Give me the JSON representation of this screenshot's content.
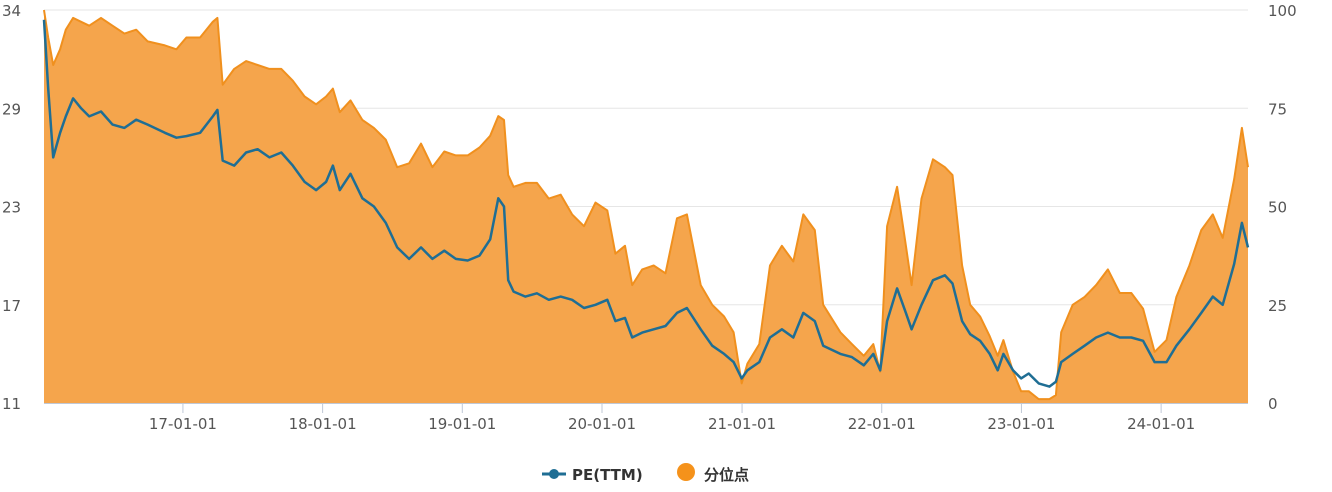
{
  "chart_data": {
    "type": "line",
    "title": "",
    "grid": "horizontal",
    "legend_position": "bottom-center",
    "colors": {
      "pe": "#1f6e94",
      "percentile_fill": "#f5a54c",
      "percentile_line": "#f0901e",
      "legend_percentile": "#f5921b",
      "axis": "#c0c8d6",
      "grid": "#e6e6e6"
    },
    "x_axis": {
      "type": "date",
      "range": [
        "2016-01-04",
        "2024-08-15"
      ],
      "ticks": [
        "2017-01-01",
        "2018-01-01",
        "2019-01-01",
        "2020-01-01",
        "2021-01-01",
        "2022-01-01",
        "2023-01-01",
        "2024-01-01"
      ],
      "tick_labels": [
        "17-01-01",
        "18-01-01",
        "19-01-01",
        "20-01-01",
        "21-01-01",
        "22-01-01",
        "23-01-01",
        "24-01-01"
      ]
    },
    "y_axis_left": {
      "ticks": [
        11,
        17,
        23,
        29,
        34
      ],
      "tick_labels": [
        "11",
        "17",
        "23",
        "29",
        "34"
      ]
    },
    "y_axis_right": {
      "range": [
        0,
        100
      ],
      "ticks": [
        0,
        25,
        50,
        75,
        100
      ],
      "tick_labels": [
        "0",
        "25",
        "50",
        "75",
        "100"
      ]
    },
    "series": [
      {
        "name": "PE(TTM)",
        "axis": "left",
        "style": "line",
        "points": [
          [
            "2016-01-04",
            33.5
          ],
          [
            "2016-01-15",
            30.0
          ],
          [
            "2016-01-28",
            26.0
          ],
          [
            "2016-02-15",
            27.5
          ],
          [
            "2016-03-01",
            28.5
          ],
          [
            "2016-03-20",
            29.5
          ],
          [
            "2016-04-10",
            29.0
          ],
          [
            "2016-05-01",
            28.5
          ],
          [
            "2016-06-01",
            28.8
          ],
          [
            "2016-07-01",
            28.0
          ],
          [
            "2016-08-01",
            27.8
          ],
          [
            "2016-09-01",
            28.3
          ],
          [
            "2016-10-01",
            28.0
          ],
          [
            "2016-11-15",
            27.5
          ],
          [
            "2016-12-15",
            27.2
          ],
          [
            "2017-01-10",
            27.3
          ],
          [
            "2017-02-15",
            27.5
          ],
          [
            "2017-03-20",
            28.5
          ],
          [
            "2017-04-01",
            28.9
          ],
          [
            "2017-04-15",
            25.8
          ],
          [
            "2017-05-15",
            25.5
          ],
          [
            "2017-06-15",
            26.3
          ],
          [
            "2017-07-15",
            26.5
          ],
          [
            "2017-08-15",
            26.0
          ],
          [
            "2017-09-15",
            26.3
          ],
          [
            "2017-10-15",
            25.5
          ],
          [
            "2017-11-15",
            24.5
          ],
          [
            "2017-12-15",
            24.0
          ],
          [
            "2018-01-10",
            24.5
          ],
          [
            "2018-01-28",
            25.5
          ],
          [
            "2018-02-15",
            24.0
          ],
          [
            "2018-03-15",
            25.0
          ],
          [
            "2018-04-15",
            23.5
          ],
          [
            "2018-05-15",
            23.0
          ],
          [
            "2018-06-15",
            22.0
          ],
          [
            "2018-07-15",
            20.5
          ],
          [
            "2018-08-15",
            19.8
          ],
          [
            "2018-09-15",
            20.5
          ],
          [
            "2018-10-15",
            19.8
          ],
          [
            "2018-11-15",
            20.3
          ],
          [
            "2018-12-15",
            19.8
          ],
          [
            "2019-01-15",
            19.7
          ],
          [
            "2019-02-15",
            20.0
          ],
          [
            "2019-03-15",
            21.0
          ],
          [
            "2019-04-05",
            23.5
          ],
          [
            "2019-04-20",
            23.0
          ],
          [
            "2019-05-01",
            18.5
          ],
          [
            "2019-05-15",
            17.8
          ],
          [
            "2019-06-15",
            17.5
          ],
          [
            "2019-07-15",
            17.7
          ],
          [
            "2019-08-15",
            17.3
          ],
          [
            "2019-09-15",
            17.5
          ],
          [
            "2019-10-15",
            17.3
          ],
          [
            "2019-11-15",
            16.8
          ],
          [
            "2019-12-15",
            17.0
          ],
          [
            "2020-01-15",
            17.3
          ],
          [
            "2020-02-05",
            16.0
          ],
          [
            "2020-03-01",
            16.2
          ],
          [
            "2020-03-20",
            15.0
          ],
          [
            "2020-04-15",
            15.3
          ],
          [
            "2020-05-15",
            15.5
          ],
          [
            "2020-06-15",
            15.7
          ],
          [
            "2020-07-15",
            16.5
          ],
          [
            "2020-08-10",
            16.8
          ],
          [
            "2020-09-15",
            15.5
          ],
          [
            "2020-10-15",
            14.5
          ],
          [
            "2020-11-15",
            14.0
          ],
          [
            "2020-12-10",
            13.5
          ],
          [
            "2020-12-31",
            12.5
          ],
          [
            "2021-01-15",
            13.0
          ],
          [
            "2021-02-15",
            13.5
          ],
          [
            "2021-03-15",
            15.0
          ],
          [
            "2021-04-15",
            15.5
          ],
          [
            "2021-05-15",
            15.0
          ],
          [
            "2021-06-10",
            16.5
          ],
          [
            "2021-07-10",
            16.0
          ],
          [
            "2021-08-01",
            14.5
          ],
          [
            "2021-09-15",
            14.0
          ],
          [
            "2021-10-15",
            13.8
          ],
          [
            "2021-11-15",
            13.3
          ],
          [
            "2021-12-10",
            14.0
          ],
          [
            "2021-12-28",
            13.0
          ],
          [
            "2022-01-15",
            16.0
          ],
          [
            "2022-02-10",
            18.0
          ],
          [
            "2022-03-05",
            16.5
          ],
          [
            "2022-03-20",
            15.5
          ],
          [
            "2022-04-15",
            17.0
          ],
          [
            "2022-05-15",
            18.5
          ],
          [
            "2022-06-15",
            18.8
          ],
          [
            "2022-07-05",
            18.3
          ],
          [
            "2022-07-30",
            16.0
          ],
          [
            "2022-08-20",
            15.2
          ],
          [
            "2022-09-15",
            14.8
          ],
          [
            "2022-10-10",
            14.0
          ],
          [
            "2022-10-31",
            13.0
          ],
          [
            "2022-11-15",
            14.0
          ],
          [
            "2022-12-10",
            13.0
          ],
          [
            "2022-12-31",
            12.5
          ],
          [
            "2023-01-20",
            12.8
          ],
          [
            "2023-02-15",
            12.2
          ],
          [
            "2023-03-15",
            12.0
          ],
          [
            "2023-04-01",
            12.3
          ],
          [
            "2023-04-15",
            13.5
          ],
          [
            "2023-05-15",
            14.0
          ],
          [
            "2023-06-15",
            14.5
          ],
          [
            "2023-07-15",
            15.0
          ],
          [
            "2023-08-15",
            15.3
          ],
          [
            "2023-09-15",
            15.0
          ],
          [
            "2023-10-15",
            15.0
          ],
          [
            "2023-11-15",
            14.8
          ],
          [
            "2023-12-15",
            13.5
          ],
          [
            "2024-01-15",
            13.5
          ],
          [
            "2024-02-10",
            14.5
          ],
          [
            "2024-03-15",
            15.5
          ],
          [
            "2024-04-15",
            16.5
          ],
          [
            "2024-05-15",
            17.5
          ],
          [
            "2024-06-10",
            17.0
          ],
          [
            "2024-07-10",
            19.5
          ],
          [
            "2024-07-30",
            22.0
          ],
          [
            "2024-08-15",
            20.5
          ]
        ]
      },
      {
        "name": "分位点",
        "axis": "right",
        "style": "area",
        "points": [
          [
            "2016-01-04",
            100
          ],
          [
            "2016-01-15",
            93
          ],
          [
            "2016-01-28",
            86
          ],
          [
            "2016-02-15",
            90
          ],
          [
            "2016-03-01",
            95
          ],
          [
            "2016-03-20",
            98
          ],
          [
            "2016-04-10",
            97
          ],
          [
            "2016-05-01",
            96
          ],
          [
            "2016-06-01",
            98
          ],
          [
            "2016-07-01",
            96
          ],
          [
            "2016-08-01",
            94
          ],
          [
            "2016-09-01",
            95
          ],
          [
            "2016-10-01",
            92
          ],
          [
            "2016-11-15",
            91
          ],
          [
            "2016-12-15",
            90
          ],
          [
            "2017-01-10",
            93
          ],
          [
            "2017-02-15",
            93
          ],
          [
            "2017-03-20",
            97
          ],
          [
            "2017-04-01",
            98
          ],
          [
            "2017-04-15",
            81
          ],
          [
            "2017-05-15",
            85
          ],
          [
            "2017-06-15",
            87
          ],
          [
            "2017-07-15",
            86
          ],
          [
            "2017-08-15",
            85
          ],
          [
            "2017-09-15",
            85
          ],
          [
            "2017-10-15",
            82
          ],
          [
            "2017-11-15",
            78
          ],
          [
            "2017-12-15",
            76
          ],
          [
            "2018-01-10",
            78
          ],
          [
            "2018-01-28",
            80
          ],
          [
            "2018-02-15",
            74
          ],
          [
            "2018-03-15",
            77
          ],
          [
            "2018-04-15",
            72
          ],
          [
            "2018-05-15",
            70
          ],
          [
            "2018-06-15",
            67
          ],
          [
            "2018-07-15",
            60
          ],
          [
            "2018-08-15",
            61
          ],
          [
            "2018-09-15",
            66
          ],
          [
            "2018-10-15",
            60
          ],
          [
            "2018-11-15",
            64
          ],
          [
            "2018-12-15",
            63
          ],
          [
            "2019-01-15",
            63
          ],
          [
            "2019-02-15",
            65
          ],
          [
            "2019-03-15",
            68
          ],
          [
            "2019-04-05",
            73
          ],
          [
            "2019-04-20",
            72
          ],
          [
            "2019-05-01",
            58
          ],
          [
            "2019-05-15",
            55
          ],
          [
            "2019-06-15",
            56
          ],
          [
            "2019-07-15",
            56
          ],
          [
            "2019-08-15",
            52
          ],
          [
            "2019-09-15",
            53
          ],
          [
            "2019-10-15",
            48
          ],
          [
            "2019-11-15",
            45
          ],
          [
            "2019-12-15",
            51
          ],
          [
            "2020-01-15",
            49
          ],
          [
            "2020-02-05",
            38
          ],
          [
            "2020-03-01",
            40
          ],
          [
            "2020-03-20",
            30
          ],
          [
            "2020-04-15",
            34
          ],
          [
            "2020-05-15",
            35
          ],
          [
            "2020-06-15",
            33
          ],
          [
            "2020-07-15",
            47
          ],
          [
            "2020-08-10",
            48
          ],
          [
            "2020-09-15",
            30
          ],
          [
            "2020-10-15",
            25
          ],
          [
            "2020-11-15",
            22
          ],
          [
            "2020-12-10",
            18
          ],
          [
            "2020-12-31",
            5
          ],
          [
            "2021-01-15",
            10
          ],
          [
            "2021-02-15",
            15
          ],
          [
            "2021-03-15",
            35
          ],
          [
            "2021-04-15",
            40
          ],
          [
            "2021-05-15",
            36
          ],
          [
            "2021-06-10",
            48
          ],
          [
            "2021-07-10",
            44
          ],
          [
            "2021-08-01",
            25
          ],
          [
            "2021-09-15",
            18
          ],
          [
            "2021-10-15",
            15
          ],
          [
            "2021-11-15",
            12
          ],
          [
            "2021-12-10",
            15
          ],
          [
            "2021-12-28",
            8
          ],
          [
            "2022-01-15",
            45
          ],
          [
            "2022-02-10",
            55
          ],
          [
            "2022-03-05",
            40
          ],
          [
            "2022-03-20",
            30
          ],
          [
            "2022-04-15",
            52
          ],
          [
            "2022-05-15",
            62
          ],
          [
            "2022-06-15",
            60
          ],
          [
            "2022-07-05",
            58
          ],
          [
            "2022-07-30",
            35
          ],
          [
            "2022-08-20",
            25
          ],
          [
            "2022-09-15",
            22
          ],
          [
            "2022-10-10",
            17
          ],
          [
            "2022-10-31",
            12
          ],
          [
            "2022-11-15",
            16
          ],
          [
            "2022-12-10",
            8
          ],
          [
            "2022-12-31",
            3
          ],
          [
            "2023-01-20",
            3
          ],
          [
            "2023-02-15",
            1
          ],
          [
            "2023-03-15",
            1
          ],
          [
            "2023-04-01",
            2
          ],
          [
            "2023-04-15",
            18
          ],
          [
            "2023-05-15",
            25
          ],
          [
            "2023-06-15",
            27
          ],
          [
            "2023-07-15",
            30
          ],
          [
            "2023-08-15",
            34
          ],
          [
            "2023-09-15",
            28
          ],
          [
            "2023-10-15",
            28
          ],
          [
            "2023-11-15",
            24
          ],
          [
            "2023-12-15",
            13
          ],
          [
            "2024-01-15",
            16
          ],
          [
            "2024-02-10",
            27
          ],
          [
            "2024-03-15",
            35
          ],
          [
            "2024-04-15",
            44
          ],
          [
            "2024-05-15",
            48
          ],
          [
            "2024-06-10",
            42
          ],
          [
            "2024-07-10",
            57
          ],
          [
            "2024-07-30",
            70
          ],
          [
            "2024-08-15",
            60
          ]
        ]
      }
    ]
  },
  "legend": {
    "items": [
      {
        "label": "PE(TTM)",
        "icon": "line-with-dot-icon"
      },
      {
        "label": "分位点",
        "icon": "filled-circle-icon"
      }
    ]
  }
}
